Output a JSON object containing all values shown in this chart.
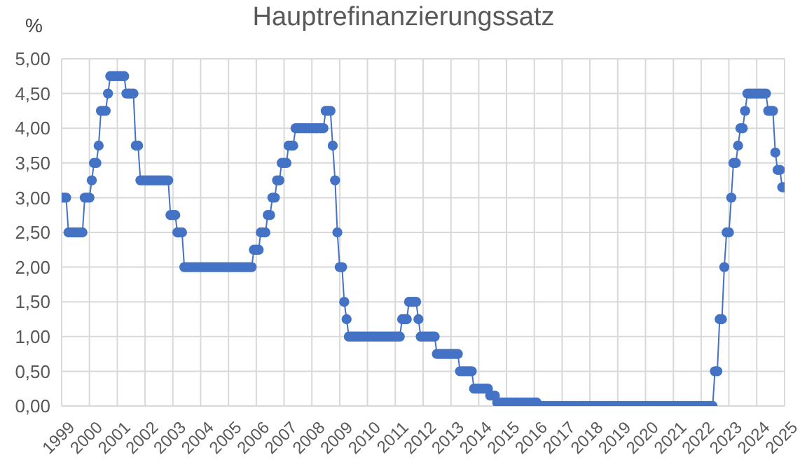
{
  "chart_data": {
    "type": "line",
    "title": "Hauptrefinanzierungssatz",
    "ylabel": "%",
    "x": [
      "1999-01",
      "1999-02",
      "1999-03",
      "1999-04",
      "1999-05",
      "1999-06",
      "1999-07",
      "1999-08",
      "1999-09",
      "1999-10",
      "1999-11",
      "1999-12",
      "2000-01",
      "2000-02",
      "2000-03",
      "2000-04",
      "2000-05",
      "2000-06",
      "2000-07",
      "2000-08",
      "2000-09",
      "2000-10",
      "2000-11",
      "2000-12",
      "2001-01",
      "2001-02",
      "2001-03",
      "2001-04",
      "2001-05",
      "2001-06",
      "2001-07",
      "2001-08",
      "2001-09",
      "2001-10",
      "2001-11",
      "2001-12",
      "2002-01",
      "2002-02",
      "2002-03",
      "2002-04",
      "2002-05",
      "2002-06",
      "2002-07",
      "2002-08",
      "2002-09",
      "2002-10",
      "2002-11",
      "2002-12",
      "2003-01",
      "2003-02",
      "2003-03",
      "2003-04",
      "2003-05",
      "2003-06",
      "2003-07",
      "2003-08",
      "2003-09",
      "2003-10",
      "2003-11",
      "2003-12",
      "2004-01",
      "2004-02",
      "2004-03",
      "2004-04",
      "2004-05",
      "2004-06",
      "2004-07",
      "2004-08",
      "2004-09",
      "2004-10",
      "2004-11",
      "2004-12",
      "2005-01",
      "2005-02",
      "2005-03",
      "2005-04",
      "2005-05",
      "2005-06",
      "2005-07",
      "2005-08",
      "2005-09",
      "2005-10",
      "2005-11",
      "2005-12",
      "2006-01",
      "2006-02",
      "2006-03",
      "2006-04",
      "2006-05",
      "2006-06",
      "2006-07",
      "2006-08",
      "2006-09",
      "2006-10",
      "2006-11",
      "2006-12",
      "2007-01",
      "2007-02",
      "2007-03",
      "2007-04",
      "2007-05",
      "2007-06",
      "2007-07",
      "2007-08",
      "2007-09",
      "2007-10",
      "2007-11",
      "2007-12",
      "2008-01",
      "2008-02",
      "2008-03",
      "2008-04",
      "2008-05",
      "2008-06",
      "2008-07",
      "2008-08",
      "2008-09",
      "2008-10",
      "2008-11",
      "2008-12",
      "2009-01",
      "2009-02",
      "2009-03",
      "2009-04",
      "2009-05",
      "2009-06",
      "2009-07",
      "2009-08",
      "2009-09",
      "2009-10",
      "2009-11",
      "2009-12",
      "2010-01",
      "2010-02",
      "2010-03",
      "2010-04",
      "2010-05",
      "2010-06",
      "2010-07",
      "2010-08",
      "2010-09",
      "2010-10",
      "2010-11",
      "2010-12",
      "2011-01",
      "2011-02",
      "2011-03",
      "2011-04",
      "2011-05",
      "2011-06",
      "2011-07",
      "2011-08",
      "2011-09",
      "2011-10",
      "2011-11",
      "2011-12",
      "2012-01",
      "2012-02",
      "2012-03",
      "2012-04",
      "2012-05",
      "2012-06",
      "2012-07",
      "2012-08",
      "2012-09",
      "2012-10",
      "2012-11",
      "2012-12",
      "2013-01",
      "2013-02",
      "2013-03",
      "2013-04",
      "2013-05",
      "2013-06",
      "2013-07",
      "2013-08",
      "2013-09",
      "2013-10",
      "2013-11",
      "2013-12",
      "2014-01",
      "2014-02",
      "2014-03",
      "2014-04",
      "2014-05",
      "2014-06",
      "2014-07",
      "2014-08",
      "2014-09",
      "2014-10",
      "2014-11",
      "2014-12",
      "2015-01",
      "2015-02",
      "2015-03",
      "2015-04",
      "2015-05",
      "2015-06",
      "2015-07",
      "2015-08",
      "2015-09",
      "2015-10",
      "2015-11",
      "2015-12",
      "2016-01",
      "2016-02",
      "2016-03",
      "2016-04",
      "2016-05",
      "2016-06",
      "2016-07",
      "2016-08",
      "2016-09",
      "2016-10",
      "2016-11",
      "2016-12",
      "2017-01",
      "2017-02",
      "2017-03",
      "2017-04",
      "2017-05",
      "2017-06",
      "2017-07",
      "2017-08",
      "2017-09",
      "2017-10",
      "2017-11",
      "2017-12",
      "2018-01",
      "2018-02",
      "2018-03",
      "2018-04",
      "2018-05",
      "2018-06",
      "2018-07",
      "2018-08",
      "2018-09",
      "2018-10",
      "2018-11",
      "2018-12",
      "2019-01",
      "2019-02",
      "2019-03",
      "2019-04",
      "2019-05",
      "2019-06",
      "2019-07",
      "2019-08",
      "2019-09",
      "2019-10",
      "2019-11",
      "2019-12",
      "2020-01",
      "2020-02",
      "2020-03",
      "2020-04",
      "2020-05",
      "2020-06",
      "2020-07",
      "2020-08",
      "2020-09",
      "2020-10",
      "2020-11",
      "2020-12",
      "2021-01",
      "2021-02",
      "2021-03",
      "2021-04",
      "2021-05",
      "2021-06",
      "2021-07",
      "2021-08",
      "2021-09",
      "2021-10",
      "2021-11",
      "2021-12",
      "2022-01",
      "2022-02",
      "2022-03",
      "2022-04",
      "2022-05",
      "2022-06",
      "2022-07",
      "2022-08",
      "2022-09",
      "2022-10",
      "2022-11",
      "2022-12",
      "2023-01",
      "2023-02",
      "2023-03",
      "2023-04",
      "2023-05",
      "2023-06",
      "2023-07",
      "2023-08",
      "2023-09",
      "2023-10",
      "2023-11",
      "2023-12",
      "2024-01",
      "2024-02",
      "2024-03",
      "2024-04",
      "2024-05",
      "2024-06",
      "2024-07",
      "2024-08",
      "2024-09",
      "2024-10",
      "2024-11",
      "2024-12",
      "2025-01"
    ],
    "series": [
      {
        "color": "#4472c4",
        "values": [
          3.0,
          3.0,
          3.0,
          2.5,
          2.5,
          2.5,
          2.5,
          2.5,
          2.5,
          2.5,
          3.0,
          3.0,
          3.0,
          3.25,
          3.5,
          3.5,
          3.75,
          4.25,
          4.25,
          4.25,
          4.5,
          4.75,
          4.75,
          4.75,
          4.75,
          4.75,
          4.75,
          4.75,
          4.5,
          4.5,
          4.5,
          4.5,
          3.75,
          3.75,
          3.25,
          3.25,
          3.25,
          3.25,
          3.25,
          3.25,
          3.25,
          3.25,
          3.25,
          3.25,
          3.25,
          3.25,
          3.25,
          2.75,
          2.75,
          2.75,
          2.5,
          2.5,
          2.5,
          2.0,
          2.0,
          2.0,
          2.0,
          2.0,
          2.0,
          2.0,
          2.0,
          2.0,
          2.0,
          2.0,
          2.0,
          2.0,
          2.0,
          2.0,
          2.0,
          2.0,
          2.0,
          2.0,
          2.0,
          2.0,
          2.0,
          2.0,
          2.0,
          2.0,
          2.0,
          2.0,
          2.0,
          2.0,
          2.0,
          2.25,
          2.25,
          2.25,
          2.5,
          2.5,
          2.5,
          2.75,
          2.75,
          3.0,
          3.0,
          3.25,
          3.25,
          3.5,
          3.5,
          3.5,
          3.75,
          3.75,
          3.75,
          4.0,
          4.0,
          4.0,
          4.0,
          4.0,
          4.0,
          4.0,
          4.0,
          4.0,
          4.0,
          4.0,
          4.0,
          4.0,
          4.25,
          4.25,
          4.25,
          3.75,
          3.25,
          2.5,
          2.0,
          2.0,
          1.5,
          1.25,
          1.0,
          1.0,
          1.0,
          1.0,
          1.0,
          1.0,
          1.0,
          1.0,
          1.0,
          1.0,
          1.0,
          1.0,
          1.0,
          1.0,
          1.0,
          1.0,
          1.0,
          1.0,
          1.0,
          1.0,
          1.0,
          1.0,
          1.0,
          1.25,
          1.25,
          1.25,
          1.5,
          1.5,
          1.5,
          1.5,
          1.25,
          1.0,
          1.0,
          1.0,
          1.0,
          1.0,
          1.0,
          1.0,
          0.75,
          0.75,
          0.75,
          0.75,
          0.75,
          0.75,
          0.75,
          0.75,
          0.75,
          0.75,
          0.5,
          0.5,
          0.5,
          0.5,
          0.5,
          0.5,
          0.25,
          0.25,
          0.25,
          0.25,
          0.25,
          0.25,
          0.25,
          0.15,
          0.15,
          0.15,
          0.05,
          0.05,
          0.05,
          0.05,
          0.05,
          0.05,
          0.05,
          0.05,
          0.05,
          0.05,
          0.05,
          0.05,
          0.05,
          0.05,
          0.05,
          0.05,
          0.05,
          0.05,
          0.0,
          0.0,
          0.0,
          0.0,
          0.0,
          0.0,
          0.0,
          0.0,
          0.0,
          0.0,
          0.0,
          0.0,
          0.0,
          0.0,
          0.0,
          0.0,
          0.0,
          0.0,
          0.0,
          0.0,
          0.0,
          0.0,
          0.0,
          0.0,
          0.0,
          0.0,
          0.0,
          0.0,
          0.0,
          0.0,
          0.0,
          0.0,
          0.0,
          0.0,
          0.0,
          0.0,
          0.0,
          0.0,
          0.0,
          0.0,
          0.0,
          0.0,
          0.0,
          0.0,
          0.0,
          0.0,
          0.0,
          0.0,
          0.0,
          0.0,
          0.0,
          0.0,
          0.0,
          0.0,
          0.0,
          0.0,
          0.0,
          0.0,
          0.0,
          0.0,
          0.0,
          0.0,
          0.0,
          0.0,
          0.0,
          0.0,
          0.0,
          0.0,
          0.0,
          0.0,
          0.0,
          0.0,
          0.0,
          0.0,
          0.0,
          0.0,
          0.5,
          0.5,
          1.25,
          1.25,
          2.0,
          2.5,
          2.5,
          3.0,
          3.5,
          3.5,
          3.75,
          4.0,
          4.0,
          4.25,
          4.5,
          4.5,
          4.5,
          4.5,
          4.5,
          4.5,
          4.5,
          4.5,
          4.5,
          4.25,
          4.25,
          4.25,
          3.65,
          3.4,
          3.4,
          3.15,
          3.15
        ]
      }
    ],
    "xlim": [
      "1999",
      "2025"
    ],
    "xticks": [
      "1999",
      "2000",
      "2001",
      "2002",
      "2003",
      "2004",
      "2005",
      "2006",
      "2007",
      "2008",
      "2009",
      "2010",
      "2011",
      "2012",
      "2013",
      "2014",
      "2015",
      "2016",
      "2017",
      "2018",
      "2019",
      "2020",
      "2021",
      "2022",
      "2023",
      "2024",
      "2025"
    ],
    "ylim": [
      0,
      5
    ],
    "yticks": [
      {
        "value": 0,
        "label": "0,00"
      },
      {
        "value": 0.5,
        "label": "0,50"
      },
      {
        "value": 1,
        "label": "1,00"
      },
      {
        "value": 1.5,
        "label": "1,50"
      },
      {
        "value": 2,
        "label": "2,00"
      },
      {
        "value": 2.5,
        "label": "2,50"
      },
      {
        "value": 3,
        "label": "3,00"
      },
      {
        "value": 3.5,
        "label": "3,50"
      },
      {
        "value": 4,
        "label": "4,00"
      },
      {
        "value": 4.5,
        "label": "4,50"
      },
      {
        "value": 5,
        "label": "5,00"
      }
    ],
    "grid": true,
    "marker": "circle",
    "line_style": "solid",
    "legend": false
  }
}
